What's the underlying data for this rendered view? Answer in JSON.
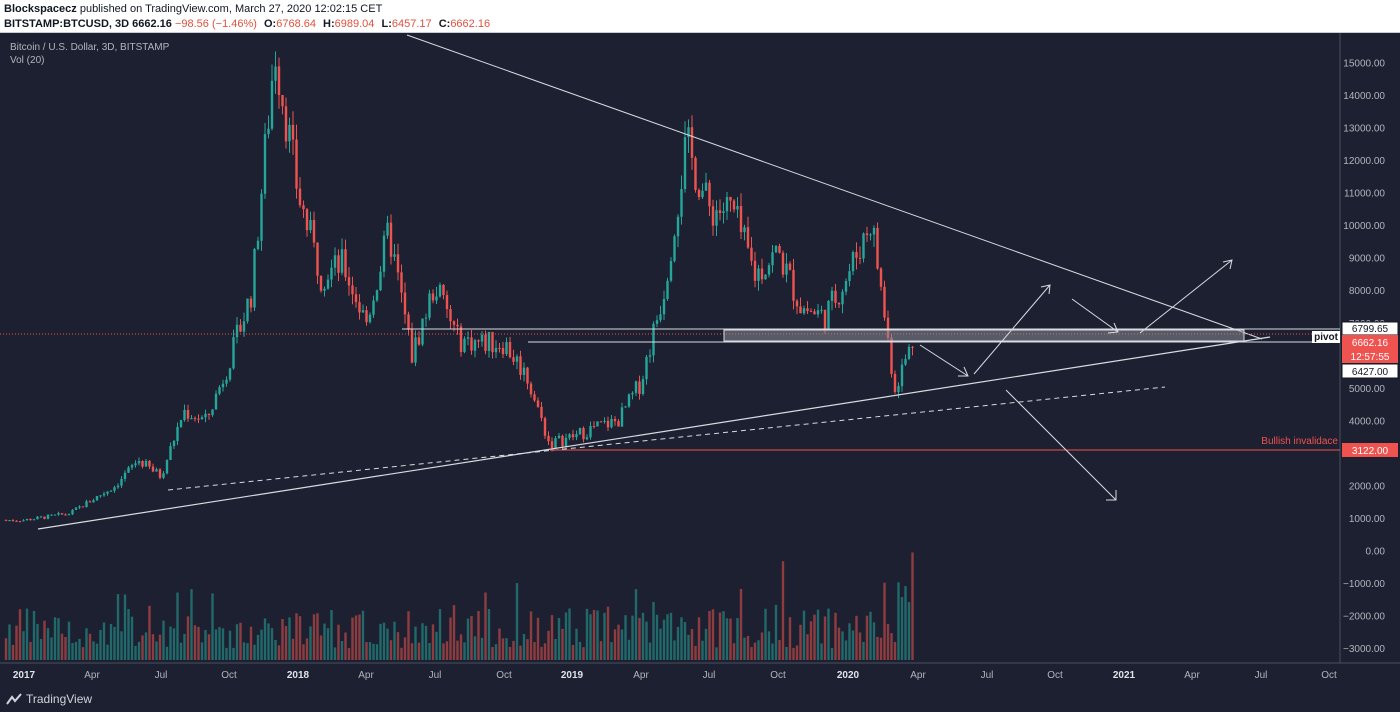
{
  "header": {
    "author": "Blockspacecz",
    "published": "published on TradingView.com, March 27, 2020 12:02:15 CET",
    "symbol": "BITSTAMP:BTCUSD, 3D",
    "last": "6662.16",
    "change": "−98.56 (−1.46%)",
    "o_label": "O:",
    "o_val": "6768.64",
    "h_label": "H:",
    "h_val": "6989.04",
    "l_label": "L:",
    "l_val": "6457.17",
    "c_label": "C:",
    "c_val": "6662.16"
  },
  "legend": {
    "title": "Bitcoin / U.S. Dollar, 3D, BITSTAMP",
    "vol": "Vol (20)"
  },
  "colors": {
    "background": "#1c2030",
    "up": "#26a69a",
    "down": "#ef5350",
    "lines": "#d8dbe2",
    "price_label": "#ef5350"
  },
  "annotations": {
    "pivot": "pivot",
    "invalidation": "Bullish invalidace",
    "price_labels": [
      "6799.65",
      "6662.16",
      "12:57:55",
      "6427.00",
      "3122.00"
    ]
  },
  "footer": {
    "brand": "TradingView"
  },
  "chart_data": {
    "type": "candlestick",
    "title": "Bitcoin / U.S. Dollar, 3D, BITSTAMP",
    "x_ticks": [
      "2017",
      "Apr",
      "Jul",
      "Oct",
      "2018",
      "Apr",
      "Jul",
      "Oct",
      "2019",
      "Apr",
      "Jul",
      "Oct",
      "2020",
      "Apr",
      "Jul",
      "Oct",
      "2021",
      "Apr",
      "Jul",
      "Oct"
    ],
    "y_ticks": [
      "15000.00",
      "14000.00",
      "13000.00",
      "12000.00",
      "11000.00",
      "10000.00",
      "9000.00",
      "8000.00",
      "7000.00",
      "6000.00",
      "5000.00",
      "4000.00",
      "3000.00",
      "2000.00",
      "1000.00",
      "0.00",
      "−1000.00",
      "−2000.00",
      "−3000.00"
    ],
    "ylim": [
      -3350,
      15900
    ],
    "series_close_path": [
      [
        "2017-01",
        950
      ],
      [
        "2017-03",
        1150
      ],
      [
        "2017-05",
        2000
      ],
      [
        "2017-06",
        2800
      ],
      [
        "2017-07",
        2300
      ],
      [
        "2017-08",
        4300
      ],
      [
        "2017-09",
        4000
      ],
      [
        "2017-10",
        5800
      ],
      [
        "2017-11",
        8000
      ],
      [
        "2017-12",
        15500
      ],
      [
        "2018-01",
        11000
      ],
      [
        "2018-02",
        8500
      ],
      [
        "2018-03",
        8800
      ],
      [
        "2018-04",
        7000
      ],
      [
        "2018-05",
        9800
      ],
      [
        "2018-06",
        6000
      ],
      [
        "2018-07",
        8200
      ],
      [
        "2018-08",
        6500
      ],
      [
        "2018-09",
        6400
      ],
      [
        "2018-10",
        6400
      ],
      [
        "2018-11",
        5400
      ],
      [
        "2018-12",
        3300
      ],
      [
        "2019-01",
        3500
      ],
      [
        "2019-02",
        3800
      ],
      [
        "2019-03",
        4000
      ],
      [
        "2019-04",
        5200
      ],
      [
        "2019-05",
        8000
      ],
      [
        "2019-06",
        12500
      ],
      [
        "2019-07",
        10500
      ],
      [
        "2019-08",
        10500
      ],
      [
        "2019-09",
        8500
      ],
      [
        "2019-10",
        9200
      ],
      [
        "2019-11",
        7500
      ],
      [
        "2019-12",
        7200
      ],
      [
        "2020-01",
        8500
      ],
      [
        "2020-02",
        10200
      ],
      [
        "2020-03",
        5000
      ],
      [
        "2020-03-27",
        6662.16
      ]
    ],
    "levels": {
      "pivot_top": 6799.65,
      "pivot_bottom": 6427.0,
      "last": 6662.16,
      "invalidation": 3122.0
    },
    "volume": {
      "ylim": [
        0,
        1200
      ]
    }
  }
}
